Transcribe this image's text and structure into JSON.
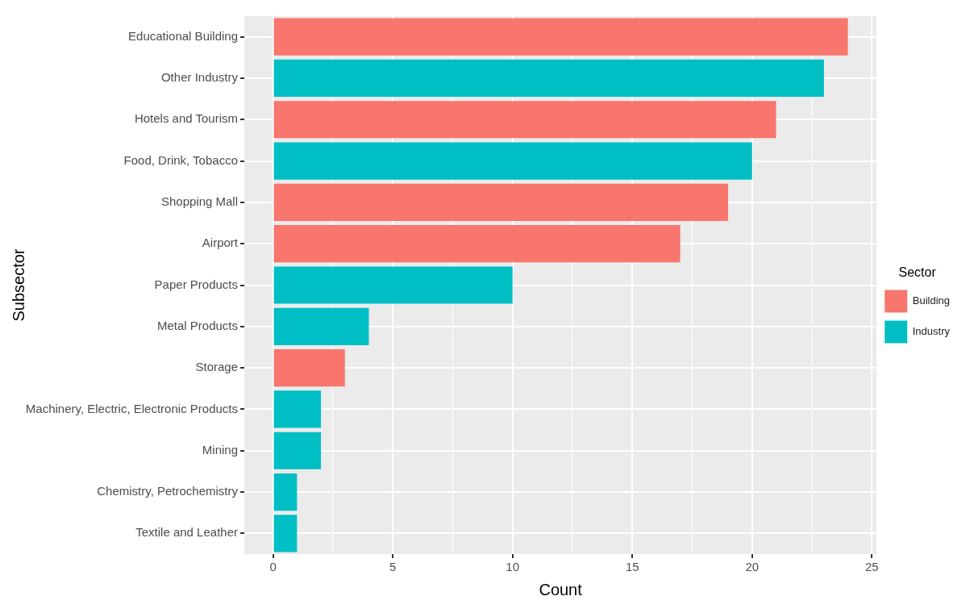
{
  "chart_data": {
    "type": "bar",
    "orientation": "horizontal",
    "stacked": true,
    "xlabel": "Count",
    "ylabel": "Subsector",
    "legend_title": "Sector",
    "legend": "right",
    "categories": [
      "Educational Building",
      "Other Industry",
      "Hotels and Tourism",
      "Food, Drink, Tobacco",
      "Shopping Mall",
      "Airport",
      "Paper Products",
      "Metal Products",
      "Storage",
      "Machinery, Electric, Electronic Products",
      "Mining",
      "Chemistry, Petrochemistry",
      "Textile and Leather"
    ],
    "series": [
      {
        "name": "Building",
        "color": "#f8766d",
        "values": [
          24,
          null,
          21,
          null,
          19,
          17,
          null,
          null,
          3,
          null,
          null,
          null,
          null
        ]
      },
      {
        "name": "Industry",
        "color": "#00bfc4",
        "values": [
          null,
          23,
          null,
          20,
          null,
          null,
          10,
          4,
          null,
          2,
          2,
          1,
          1
        ]
      }
    ],
    "xlim": [
      -1.2,
      25.2
    ],
    "xticks": [
      0,
      {
        "value": 2.5,
        "label": null
      },
      5,
      {
        "value": 7.5,
        "label": null
      },
      10,
      {
        "value": 12.5,
        "label": null
      },
      15,
      {
        "value": 17.5,
        "label": null
      },
      20,
      {
        "value": 22.5,
        "label": null
      },
      25
    ],
    "grid": true
  }
}
